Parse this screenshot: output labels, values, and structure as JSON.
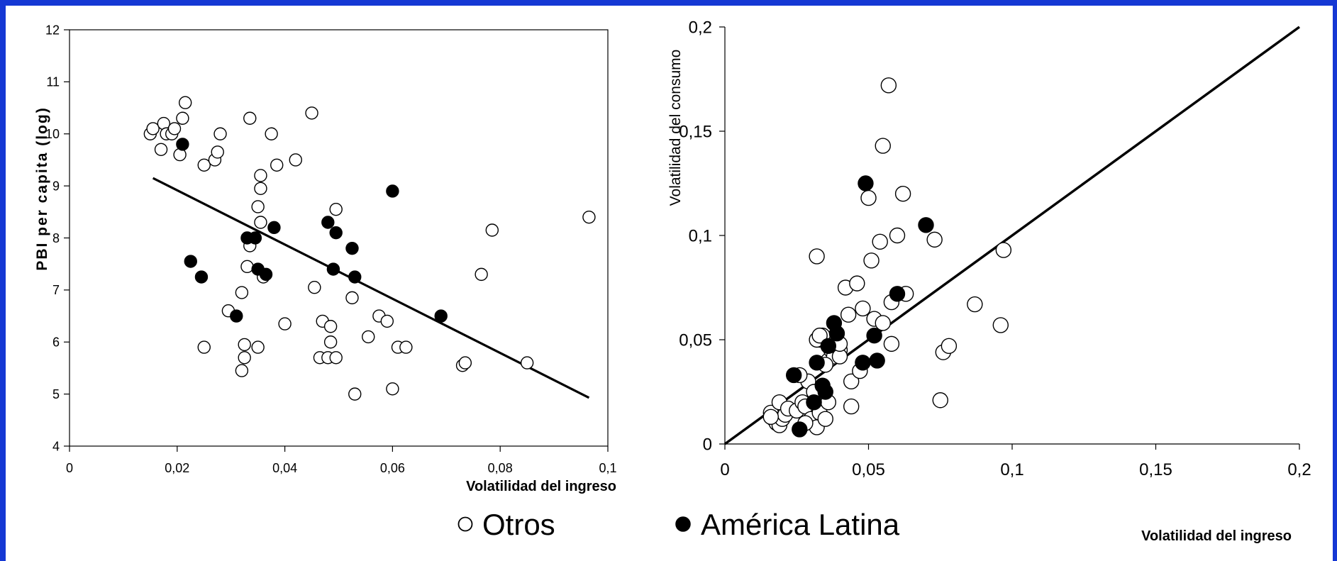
{
  "chart_data": [
    {
      "type": "scatter",
      "title": "",
      "xlabel": "Volatilidad del ingreso",
      "ylabel": "PBI per capita (log)",
      "xlim": [
        0,
        0.1
      ],
      "ylim": [
        4,
        12
      ],
      "x_ticks": [
        "0",
        "0,02",
        "0,04",
        "0,06",
        "0,08",
        "0,1"
      ],
      "y_ticks": [
        "4",
        "5",
        "6",
        "7",
        "8",
        "9",
        "10",
        "11",
        "12"
      ],
      "grid": false,
      "trendline": {
        "x": [
          0.0155,
          0.0965
        ],
        "y": [
          9.15,
          4.93
        ]
      },
      "series": [
        {
          "name": "Otros",
          "color": "#ffffff",
          "x": [
            0.015,
            0.0155,
            0.017,
            0.0175,
            0.018,
            0.019,
            0.0195,
            0.0205,
            0.021,
            0.0215,
            0.025,
            0.027,
            0.0275,
            0.028,
            0.0335,
            0.0375,
            0.045,
            0.0385,
            0.042,
            0.0355,
            0.0355,
            0.035,
            0.0355,
            0.0335,
            0.033,
            0.032,
            0.036,
            0.0495,
            0.0455,
            0.0295,
            0.04,
            0.047,
            0.0485,
            0.0525,
            0.0575,
            0.059,
            0.0555,
            0.0485,
            0.025,
            0.0325,
            0.035,
            0.0465,
            0.048,
            0.0495,
            0.0325,
            0.032,
            0.053,
            0.06,
            0.061,
            0.0625,
            0.073,
            0.0735,
            0.0765,
            0.0785,
            0.085,
            0.0965
          ],
          "y": [
            10.0,
            10.1,
            9.7,
            10.2,
            10.0,
            10.0,
            10.1,
            9.6,
            10.3,
            10.6,
            9.4,
            9.5,
            9.65,
            10.0,
            10.3,
            10.0,
            10.4,
            9.4,
            9.5,
            9.2,
            8.95,
            8.6,
            8.3,
            7.85,
            7.45,
            6.95,
            7.25,
            8.55,
            7.05,
            6.6,
            6.35,
            6.4,
            6.3,
            6.85,
            6.5,
            6.4,
            6.1,
            6.0,
            5.9,
            5.95,
            5.9,
            5.7,
            5.7,
            5.7,
            5.7,
            5.45,
            5.0,
            5.1,
            5.9,
            5.9,
            5.55,
            5.6,
            7.3,
            8.15,
            5.6,
            8.4
          ]
        },
        {
          "name": "América Latina",
          "color": "#000000",
          "x": [
            0.021,
            0.0225,
            0.0245,
            0.031,
            0.033,
            0.0345,
            0.035,
            0.0365,
            0.038,
            0.048,
            0.049,
            0.0495,
            0.0525,
            0.053,
            0.06,
            0.069
          ],
          "y": [
            9.8,
            7.55,
            7.25,
            6.5,
            8.0,
            8.0,
            7.4,
            7.3,
            8.2,
            8.3,
            7.4,
            8.1,
            7.8,
            7.25,
            8.9,
            6.5
          ]
        }
      ]
    },
    {
      "type": "scatter",
      "title": "",
      "xlabel": "Volatilidad del ingreso",
      "ylabel": "Volatilidad del consumo",
      "xlim": [
        0,
        0.2
      ],
      "ylim": [
        0,
        0.2
      ],
      "x_ticks": [
        "0",
        "0,05",
        "0,1",
        "0,15",
        "0,2"
      ],
      "y_ticks": [
        "0",
        "0,05",
        "0,1",
        "0,15",
        "0,2"
      ],
      "grid": false,
      "reference_line": {
        "x": [
          0,
          0.2
        ],
        "y": [
          0,
          0.2
        ]
      },
      "series": [
        {
          "name": "Otros",
          "color": "#ffffff",
          "x": [
            0.016,
            0.017,
            0.018,
            0.019,
            0.02,
            0.021,
            0.016,
            0.019,
            0.022,
            0.025,
            0.027,
            0.028,
            0.029,
            0.03,
            0.031,
            0.032,
            0.033,
            0.034,
            0.035,
            0.036,
            0.026,
            0.028,
            0.033,
            0.034,
            0.032,
            0.031,
            0.036,
            0.037,
            0.038,
            0.04,
            0.04,
            0.04,
            0.042,
            0.043,
            0.044,
            0.046,
            0.047,
            0.048,
            0.05,
            0.051,
            0.052,
            0.054,
            0.055,
            0.055,
            0.057,
            0.058,
            0.058,
            0.06,
            0.062,
            0.063,
            0.073,
            0.075,
            0.076,
            0.078,
            0.087,
            0.096,
            0.097,
            0.032,
            0.033,
            0.035,
            0.044
          ],
          "y": [
            0.015,
            0.012,
            0.01,
            0.009,
            0.012,
            0.014,
            0.013,
            0.02,
            0.017,
            0.016,
            0.02,
            0.018,
            0.03,
            0.012,
            0.02,
            0.008,
            0.015,
            0.025,
            0.012,
            0.02,
            0.033,
            0.01,
            0.05,
            0.052,
            0.05,
            0.025,
            0.04,
            0.045,
            0.042,
            0.045,
            0.042,
            0.048,
            0.075,
            0.062,
            0.03,
            0.077,
            0.035,
            0.065,
            0.118,
            0.088,
            0.06,
            0.097,
            0.143,
            0.058,
            0.172,
            0.068,
            0.048,
            0.1,
            0.12,
            0.072,
            0.098,
            0.021,
            0.044,
            0.047,
            0.067,
            0.057,
            0.093,
            0.09,
            0.052,
            0.038,
            0.018
          ]
        },
        {
          "name": "América Latina",
          "color": "#000000",
          "x": [
            0.024,
            0.026,
            0.031,
            0.032,
            0.034,
            0.035,
            0.036,
            0.038,
            0.039,
            0.048,
            0.049,
            0.052,
            0.053,
            0.06,
            0.07
          ],
          "y": [
            0.033,
            0.007,
            0.02,
            0.039,
            0.028,
            0.025,
            0.047,
            0.058,
            0.053,
            0.039,
            0.125,
            0.052,
            0.04,
            0.072,
            0.105
          ]
        }
      ]
    }
  ],
  "legend": {
    "items": [
      {
        "label": "Otros",
        "marker": "open-circle"
      },
      {
        "label": "América Latina",
        "marker": "filled-circle"
      }
    ]
  }
}
